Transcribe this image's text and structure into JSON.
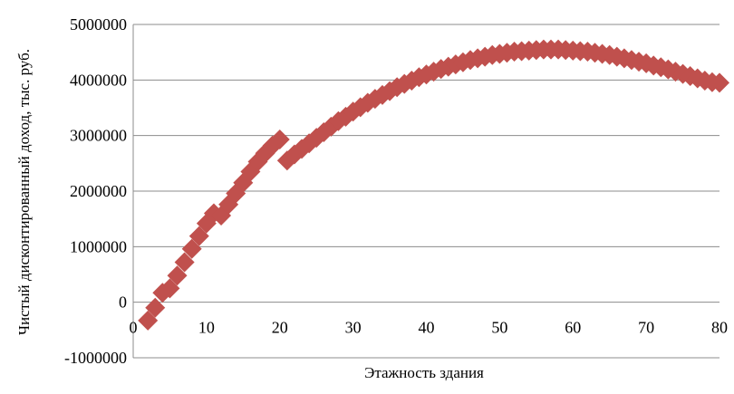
{
  "chart_data": {
    "type": "scatter",
    "title": "",
    "xlabel": "Этажность здания",
    "ylabel": "Чистый дисконтированный доход, тыс. руб.",
    "xlim": [
      0,
      80
    ],
    "ylim": [
      -1000000,
      5000000
    ],
    "x_ticks": [
      0,
      10,
      20,
      30,
      40,
      50,
      60,
      70,
      80
    ],
    "y_ticks": [
      -1000000,
      0,
      1000000,
      2000000,
      3000000,
      4000000,
      5000000
    ],
    "x_tick_labels": [
      "0",
      "10",
      "20",
      "30",
      "40",
      "50",
      "60",
      "70",
      "80"
    ],
    "y_tick_labels": [
      "-1000000",
      "0",
      "1000000",
      "2000000",
      "3000000",
      "4000000",
      "5000000"
    ],
    "grid": "horizontal",
    "legend": "none",
    "marker": "diamond",
    "marker_color": "#c0504d",
    "series": [
      {
        "points": [
          [
            2,
            -330000
          ],
          [
            3,
            -100000
          ],
          [
            4,
            170000
          ],
          [
            5,
            250000
          ],
          [
            6,
            480000
          ],
          [
            7,
            720000
          ],
          [
            8,
            960000
          ],
          [
            9,
            1190000
          ],
          [
            10,
            1420000
          ],
          [
            11,
            1600000
          ],
          [
            12,
            1560000
          ],
          [
            13,
            1760000
          ],
          [
            14,
            1960000
          ],
          [
            15,
            2150000
          ],
          [
            16,
            2350000
          ],
          [
            17,
            2530000
          ],
          [
            18,
            2680000
          ],
          [
            19,
            2820000
          ],
          [
            20,
            2930000
          ],
          [
            21,
            2550000
          ],
          [
            22,
            2660000
          ],
          [
            23,
            2760000
          ],
          [
            24,
            2860000
          ],
          [
            25,
            2960000
          ],
          [
            26,
            3060000
          ],
          [
            27,
            3160000
          ],
          [
            28,
            3260000
          ],
          [
            29,
            3340000
          ],
          [
            30,
            3430000
          ],
          [
            31,
            3510000
          ],
          [
            32,
            3590000
          ],
          [
            33,
            3660000
          ],
          [
            34,
            3730000
          ],
          [
            35,
            3800000
          ],
          [
            36,
            3870000
          ],
          [
            37,
            3930000
          ],
          [
            38,
            3990000
          ],
          [
            39,
            4050000
          ],
          [
            40,
            4100000
          ],
          [
            41,
            4150000
          ],
          [
            42,
            4200000
          ],
          [
            43,
            4240000
          ],
          [
            44,
            4280000
          ],
          [
            45,
            4320000
          ],
          [
            46,
            4360000
          ],
          [
            47,
            4390000
          ],
          [
            48,
            4420000
          ],
          [
            49,
            4450000
          ],
          [
            50,
            4470000
          ],
          [
            51,
            4490000
          ],
          [
            52,
            4510000
          ],
          [
            53,
            4520000
          ],
          [
            54,
            4530000
          ],
          [
            55,
            4540000
          ],
          [
            56,
            4550000
          ],
          [
            57,
            4550000
          ],
          [
            58,
            4550000
          ],
          [
            59,
            4540000
          ],
          [
            60,
            4530000
          ],
          [
            61,
            4520000
          ],
          [
            62,
            4510000
          ],
          [
            63,
            4490000
          ],
          [
            64,
            4470000
          ],
          [
            65,
            4450000
          ],
          [
            66,
            4420000
          ],
          [
            67,
            4390000
          ],
          [
            68,
            4360000
          ],
          [
            69,
            4330000
          ],
          [
            70,
            4300000
          ],
          [
            71,
            4260000
          ],
          [
            72,
            4230000
          ],
          [
            73,
            4190000
          ],
          [
            74,
            4150000
          ],
          [
            75,
            4110000
          ],
          [
            76,
            4070000
          ],
          [
            77,
            4030000
          ],
          [
            78,
            3990000
          ],
          [
            79,
            3960000
          ],
          [
            80,
            3950000
          ]
        ]
      }
    ]
  }
}
